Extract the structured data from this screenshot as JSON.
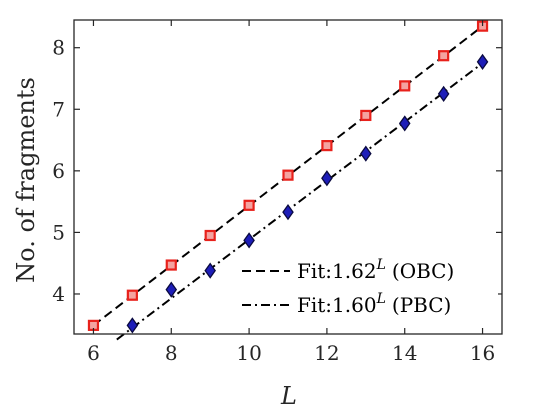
{
  "chart_data": {
    "type": "scatter",
    "ylabel": "No. of fragments",
    "xlabel": "L",
    "xlim": [
      5.5,
      16.5
    ],
    "ylim": [
      3.35,
      8.45
    ],
    "x_ticks": [
      "6",
      "8",
      "10",
      "12",
      "14",
      "16"
    ],
    "y_ticks": [
      "4",
      "5",
      "6",
      "7",
      "8"
    ],
    "grid": false,
    "legend_position": "bottom-right",
    "series": [
      {
        "marker": "square",
        "color": "#e8211b",
        "x": [
          6,
          7,
          8,
          9,
          10,
          11,
          12,
          13,
          14,
          15,
          16
        ],
        "y": [
          3.49,
          3.98,
          4.47,
          4.95,
          5.44,
          5.93,
          6.41,
          6.9,
          7.38,
          7.87,
          8.35
        ]
      },
      {
        "marker": "diamond",
        "color": "#1d1db8",
        "x": [
          7,
          8,
          9,
          10,
          11,
          12,
          13,
          14,
          15,
          16
        ],
        "y": [
          3.49,
          4.07,
          4.38,
          4.87,
          5.33,
          5.88,
          6.28,
          6.77,
          7.25,
          7.77
        ]
      }
    ],
    "fits": [
      {
        "label_prefix": "Fit:1.62",
        "label_sup": "L",
        "label_suffix": "(OBC)",
        "line_style": "dashed",
        "x": [
          6,
          16
        ],
        "y": [
          3.49,
          8.35
        ]
      },
      {
        "label_prefix": "Fit:1.60",
        "label_sup": "L",
        "label_suffix": "(PBC)",
        "line_style": "dash-dot",
        "x": [
          6.6,
          16
        ],
        "y": [
          3.26,
          7.75
        ]
      }
    ]
  }
}
